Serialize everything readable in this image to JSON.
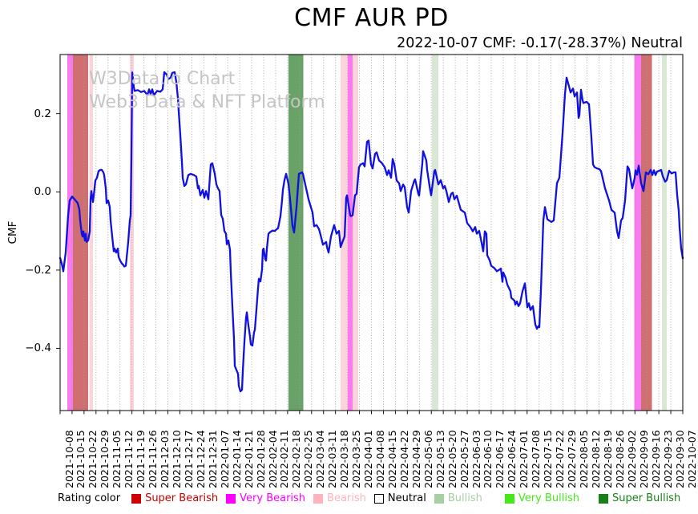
{
  "title": "CMF AUR PD",
  "subtitle": "2022-10-07 CMF: -0.17(-28.37%) Neutral",
  "watermark_line1": "W3Data.io Chart",
  "watermark_line2": "Web3 Data & NFT Platform",
  "legend": {
    "label": "Rating color",
    "items": [
      {
        "label": "Super Bearish",
        "color": "#cc0000",
        "bordered": false
      },
      {
        "label": "Very Bearish",
        "color": "#ff00ff",
        "bordered": false
      },
      {
        "label": "Bearish",
        "color": "#ffb3bd",
        "bordered": false
      },
      {
        "label": "Neutral",
        "color": "#ffffff",
        "bordered": true
      },
      {
        "label": "Bullish",
        "color": "#a8cfa4",
        "bordered": false
      },
      {
        "label": "Very Bullish",
        "color": "#46e81c",
        "bordered": false
      },
      {
        "label": "Super Bullish",
        "color": "#178017",
        "bordered": false
      }
    ]
  },
  "chart_data": {
    "type": "line",
    "title": "CMF AUR PD",
    "ylabel": "CMF",
    "series_name": "CMF",
    "line_color": "#1010e0",
    "grid": "vertical-dotted",
    "legend_position": "bottom",
    "ylim": [
      -0.559,
      0.351
    ],
    "x_range": 777,
    "yticks": [
      {
        "value": 0.2,
        "label": "0.2"
      },
      {
        "value": 0.0,
        "label": "0.0"
      },
      {
        "value": -0.2,
        "label": "−0.2"
      },
      {
        "value": -0.4,
        "label": "−0.4"
      }
    ],
    "x_tick_labels": [
      "2021-10-08",
      "2021-10-15",
      "2021-10-22",
      "2021-10-29",
      "2021-11-05",
      "2021-11-12",
      "2021-11-19",
      "2021-11-26",
      "2021-12-03",
      "2021-12-10",
      "2021-12-17",
      "2021-12-24",
      "2021-12-31",
      "2022-01-07",
      "2022-01-14",
      "2022-01-21",
      "2022-01-28",
      "2022-02-04",
      "2022-02-11",
      "2022-02-18",
      "2022-02-25",
      "2022-03-04",
      "2022-03-11",
      "2022-03-18",
      "2022-03-25",
      "2022-04-01",
      "2022-04-08",
      "2022-04-15",
      "2022-04-22",
      "2022-04-29",
      "2022-05-06",
      "2022-05-13",
      "2022-05-20",
      "2022-05-27",
      "2022-06-03",
      "2022-06-10",
      "2022-06-17",
      "2022-06-24",
      "2022-07-01",
      "2022-07-08",
      "2022-07-15",
      "2022-07-22",
      "2022-07-29",
      "2022-08-05",
      "2022-08-12",
      "2022-08-19",
      "2022-08-26",
      "2022-09-02",
      "2022-09-09",
      "2022-09-16",
      "2022-09-23",
      "2022-09-30",
      "2022-10-07"
    ],
    "band_colors": {
      "super_bearish": "#cf6f6f",
      "very_bearish": "#f97af0",
      "bearish": "#fbd3da",
      "bullish": "#d8e8d4",
      "super_bullish": "#68a268"
    },
    "bands": [
      {
        "from": 9,
        "to": 16,
        "rating": "very_bearish"
      },
      {
        "from": 16,
        "to": 35,
        "rating": "super_bearish"
      },
      {
        "from": 36.5,
        "to": 41,
        "rating": "bearish"
      },
      {
        "from": 87,
        "to": 92,
        "rating": "bearish"
      },
      {
        "from": 285,
        "to": 303.5,
        "rating": "super_bullish"
      },
      {
        "from": 350,
        "to": 359,
        "rating": "bearish"
      },
      {
        "from": 359,
        "to": 365,
        "rating": "very_bearish"
      },
      {
        "from": 365,
        "to": 372,
        "rating": "bearish"
      },
      {
        "from": 464,
        "to": 472,
        "rating": "bullish"
      },
      {
        "from": 716.5,
        "to": 725,
        "rating": "very_bearish"
      },
      {
        "from": 725,
        "to": 738.5,
        "rating": "super_bearish"
      },
      {
        "from": 751,
        "to": 757,
        "rating": "bullish"
      }
    ],
    "points": [
      [
        0,
        -0.169
      ],
      [
        2,
        -0.183
      ],
      [
        4,
        -0.203
      ],
      [
        7,
        -0.155
      ],
      [
        10,
        -0.06
      ],
      [
        12,
        -0.022
      ],
      [
        15,
        -0.012
      ],
      [
        18,
        -0.019
      ],
      [
        22,
        -0.029
      ],
      [
        24,
        -0.045
      ],
      [
        25,
        -0.073
      ],
      [
        27,
        -0.107
      ],
      [
        28,
        -0.114
      ],
      [
        29,
        -0.101
      ],
      [
        31,
        -0.124
      ],
      [
        32,
        -0.107
      ],
      [
        33,
        -0.128
      ],
      [
        35,
        -0.124
      ],
      [
        37,
        -0.101
      ],
      [
        38,
        -0.019
      ],
      [
        39,
        0.002
      ],
      [
        41,
        -0.026
      ],
      [
        42,
        -0.009
      ],
      [
        44,
        0.029
      ],
      [
        46,
        0.036
      ],
      [
        48,
        0.053
      ],
      [
        50,
        0.056
      ],
      [
        52,
        0.056
      ],
      [
        54,
        0.05
      ],
      [
        55,
        0.043
      ],
      [
        57,
        0.009
      ],
      [
        58,
        -0.029
      ],
      [
        60,
        -0.022
      ],
      [
        62,
        -0.039
      ],
      [
        63,
        -0.073
      ],
      [
        65,
        -0.114
      ],
      [
        67,
        -0.152
      ],
      [
        68,
        -0.145
      ],
      [
        70,
        -0.155
      ],
      [
        72,
        -0.145
      ],
      [
        73,
        -0.166
      ],
      [
        75,
        -0.176
      ],
      [
        77,
        -0.183
      ],
      [
        79,
        -0.187
      ],
      [
        80,
        -0.191
      ],
      [
        82,
        -0.189
      ],
      [
        83,
        -0.169
      ],
      [
        85,
        -0.128
      ],
      [
        87,
        -0.073
      ],
      [
        88,
        -0.06
      ],
      [
        89,
        0.09
      ],
      [
        90,
        0.305
      ],
      [
        92,
        0.268
      ],
      [
        93,
        0.258
      ],
      [
        97,
        0.26
      ],
      [
        101,
        0.255
      ],
      [
        105,
        0.258
      ],
      [
        109,
        0.247
      ],
      [
        111,
        0.262
      ],
      [
        113,
        0.25
      ],
      [
        115,
        0.262
      ],
      [
        117,
        0.247
      ],
      [
        121,
        0.258
      ],
      [
        125,
        0.256
      ],
      [
        128,
        0.262
      ],
      [
        130,
        0.306
      ],
      [
        133,
        0.3
      ],
      [
        135,
        0.288
      ],
      [
        138,
        0.292
      ],
      [
        140,
        0.304
      ],
      [
        143,
        0.306
      ],
      [
        145,
        0.281
      ],
      [
        147,
        0.24
      ],
      [
        148,
        0.206
      ],
      [
        150,
        0.145
      ],
      [
        152,
        0.077
      ],
      [
        153,
        0.036
      ],
      [
        155,
        0.015
      ],
      [
        157,
        0.019
      ],
      [
        160,
        0.043
      ],
      [
        163,
        0.046
      ],
      [
        167,
        0.043
      ],
      [
        170,
        0.039
      ],
      [
        172,
        0.009
      ],
      [
        173,
        0.015
      ],
      [
        175,
        -0.009
      ],
      [
        178,
        0.005
      ],
      [
        180,
        -0.015
      ],
      [
        182,
        0.002
      ],
      [
        185,
        -0.019
      ],
      [
        188,
        0.07
      ],
      [
        190,
        0.073
      ],
      [
        193,
        0.046
      ],
      [
        195,
        0.019
      ],
      [
        197,
        0.009
      ],
      [
        199,
        0.002
      ],
      [
        201,
        -0.059
      ],
      [
        203,
        -0.069
      ],
      [
        205,
        -0.1
      ],
      [
        207,
        -0.107
      ],
      [
        208,
        -0.134
      ],
      [
        210,
        -0.124
      ],
      [
        212,
        -0.148
      ],
      [
        213,
        -0.206
      ],
      [
        215,
        -0.294
      ],
      [
        217,
        -0.376
      ],
      [
        218,
        -0.445
      ],
      [
        220,
        -0.455
      ],
      [
        222,
        -0.465
      ],
      [
        223,
        -0.496
      ],
      [
        225,
        -0.51
      ],
      [
        227,
        -0.506
      ],
      [
        228,
        -0.458
      ],
      [
        230,
        -0.383
      ],
      [
        232,
        -0.322
      ],
      [
        233,
        -0.308
      ],
      [
        235,
        -0.342
      ],
      [
        237,
        -0.37
      ],
      [
        238,
        -0.39
      ],
      [
        240,
        -0.393
      ],
      [
        242,
        -0.359
      ],
      [
        243,
        -0.353
      ],
      [
        245,
        -0.301
      ],
      [
        247,
        -0.246
      ],
      [
        248,
        -0.222
      ],
      [
        250,
        -0.229
      ],
      [
        252,
        -0.198
      ],
      [
        253,
        -0.148
      ],
      [
        254,
        -0.145
      ],
      [
        256,
        -0.172
      ],
      [
        257,
        -0.176
      ],
      [
        258,
        -0.145
      ],
      [
        260,
        -0.107
      ],
      [
        262,
        -0.103
      ],
      [
        265,
        -0.099
      ],
      [
        268,
        -0.1
      ],
      [
        270,
        -0.096
      ],
      [
        272,
        -0.093
      ],
      [
        275,
        -0.062
      ],
      [
        277,
        -0.021
      ],
      [
        278,
        0.005
      ],
      [
        280,
        0.03
      ],
      [
        282,
        0.046
      ],
      [
        285,
        0.02
      ],
      [
        287,
        -0.019
      ],
      [
        290,
        -0.087
      ],
      [
        292,
        -0.104
      ],
      [
        295,
        -0.039
      ],
      [
        298,
        0.046
      ],
      [
        302,
        0.05
      ],
      [
        303,
        0.046
      ],
      [
        307,
        0.009
      ],
      [
        310,
        -0.019
      ],
      [
        315,
        -0.053
      ],
      [
        317,
        -0.088
      ],
      [
        320,
        -0.085
      ],
      [
        323,
        -0.095
      ],
      [
        325,
        -0.11
      ],
      [
        328,
        -0.135
      ],
      [
        332,
        -0.128
      ],
      [
        333,
        -0.141
      ],
      [
        335,
        -0.155
      ],
      [
        338,
        -0.114
      ],
      [
        342,
        -0.085
      ],
      [
        345,
        -0.107
      ],
      [
        348,
        -0.1
      ],
      [
        350,
        -0.141
      ],
      [
        352,
        -0.13
      ],
      [
        355,
        -0.114
      ],
      [
        357,
        -0.015
      ],
      [
        358,
        -0.009
      ],
      [
        362,
        -0.06
      ],
      [
        363,
        -0.062
      ],
      [
        365,
        -0.06
      ],
      [
        368,
        -0.009
      ],
      [
        370,
        -0.005
      ],
      [
        373,
        0.063
      ],
      [
        375,
        0.07
      ],
      [
        378,
        0.073
      ],
      [
        380,
        0.065
      ],
      [
        383,
        0.128
      ],
      [
        385,
        0.131
      ],
      [
        388,
        0.07
      ],
      [
        390,
        0.06
      ],
      [
        393,
        0.097
      ],
      [
        395,
        0.101
      ],
      [
        398,
        0.08
      ],
      [
        401,
        0.075
      ],
      [
        405,
        0.063
      ],
      [
        408,
        0.043
      ],
      [
        410,
        0.055
      ],
      [
        413,
        0.036
      ],
      [
        415,
        0.084
      ],
      [
        417,
        0.07
      ],
      [
        420,
        0.029
      ],
      [
        423,
        0.022
      ],
      [
        425,
        0.002
      ],
      [
        428,
        0.019
      ],
      [
        430,
        0.012
      ],
      [
        433,
        -0.039
      ],
      [
        435,
        -0.053
      ],
      [
        438,
        0.002
      ],
      [
        442,
        0.029
      ],
      [
        443,
        0.032
      ],
      [
        447,
        -0.005
      ],
      [
        448,
        -0.01
      ],
      [
        452,
        0.073
      ],
      [
        453,
        0.104
      ],
      [
        457,
        0.08
      ],
      [
        458,
        0.056
      ],
      [
        462,
        0.002
      ],
      [
        463,
        -0.009
      ],
      [
        467,
        0.053
      ],
      [
        468,
        0.056
      ],
      [
        472,
        0.019
      ],
      [
        475,
        0.03
      ],
      [
        478,
        0.009
      ],
      [
        480,
        0.015
      ],
      [
        482,
        0.002
      ],
      [
        485,
        -0.026
      ],
      [
        488,
        -0.005
      ],
      [
        490,
        -0.002
      ],
      [
        492,
        -0.019
      ],
      [
        495,
        -0.01
      ],
      [
        500,
        -0.046
      ],
      [
        505,
        -0.053
      ],
      [
        508,
        -0.08
      ],
      [
        512,
        -0.09
      ],
      [
        515,
        -0.101
      ],
      [
        518,
        -0.09
      ],
      [
        520,
        -0.107
      ],
      [
        523,
        -0.1
      ],
      [
        525,
        -0.12
      ],
      [
        528,
        -0.152
      ],
      [
        530,
        -0.101
      ],
      [
        532,
        -0.107
      ],
      [
        533,
        -0.162
      ],
      [
        536,
        -0.175
      ],
      [
        538,
        -0.189
      ],
      [
        542,
        -0.195
      ],
      [
        545,
        -0.203
      ],
      [
        548,
        -0.199
      ],
      [
        550,
        -0.196
      ],
      [
        552,
        -0.23
      ],
      [
        553,
        -0.206
      ],
      [
        556,
        -0.22
      ],
      [
        558,
        -0.237
      ],
      [
        562,
        -0.254
      ],
      [
        563,
        -0.271
      ],
      [
        567,
        -0.278
      ],
      [
        568,
        -0.288
      ],
      [
        570,
        -0.28
      ],
      [
        572,
        -0.292
      ],
      [
        574,
        -0.285
      ],
      [
        577,
        -0.254
      ],
      [
        580,
        -0.234
      ],
      [
        583,
        -0.295
      ],
      [
        585,
        -0.285
      ],
      [
        587,
        -0.302
      ],
      [
        590,
        -0.292
      ],
      [
        593,
        -0.339
      ],
      [
        595,
        -0.35
      ],
      [
        597,
        -0.343
      ],
      [
        598,
        -0.346
      ],
      [
        600,
        -0.251
      ],
      [
        603,
        -0.073
      ],
      [
        605,
        -0.039
      ],
      [
        608,
        -0.07
      ],
      [
        613,
        -0.077
      ],
      [
        616,
        -0.073
      ],
      [
        620,
        0.022
      ],
      [
        623,
        0.036
      ],
      [
        627,
        0.15
      ],
      [
        630,
        0.25
      ],
      [
        632,
        0.292
      ],
      [
        635,
        0.27
      ],
      [
        637,
        0.254
      ],
      [
        640,
        0.264
      ],
      [
        642,
        0.244
      ],
      [
        645,
        0.254
      ],
      [
        647,
        0.189
      ],
      [
        648,
        0.196
      ],
      [
        650,
        0.261
      ],
      [
        652,
        0.234
      ],
      [
        653,
        0.227
      ],
      [
        657,
        0.23
      ],
      [
        660,
        0.224
      ],
      [
        663,
        0.138
      ],
      [
        665,
        0.07
      ],
      [
        667,
        0.063
      ],
      [
        670,
        0.06
      ],
      [
        673,
        0.058
      ],
      [
        675,
        0.053
      ],
      [
        680,
        0.009
      ],
      [
        685,
        -0.022
      ],
      [
        688,
        -0.046
      ],
      [
        692,
        -0.053
      ],
      [
        695,
        -0.101
      ],
      [
        697,
        -0.118
      ],
      [
        700,
        -0.073
      ],
      [
        702,
        -0.067
      ],
      [
        705,
        -0.022
      ],
      [
        708,
        0.065
      ],
      [
        710,
        0.058
      ],
      [
        713,
        0.019
      ],
      [
        714,
        0.009
      ],
      [
        717,
        0.036
      ],
      [
        718,
        0.055
      ],
      [
        720,
        0.044
      ],
      [
        722,
        0.067
      ],
      [
        725,
        0.022
      ],
      [
        727,
        0.009
      ],
      [
        728,
        0.002
      ],
      [
        731,
        0.05
      ],
      [
        734,
        0.045
      ],
      [
        737,
        0.056
      ],
      [
        739,
        0.043
      ],
      [
        741,
        0.055
      ],
      [
        743,
        0.043
      ],
      [
        745,
        0.052
      ],
      [
        748,
        0.054
      ],
      [
        750,
        0.056
      ],
      [
        752,
        0.04
      ],
      [
        755,
        0.026
      ],
      [
        757,
        0.03
      ],
      [
        760,
        0.054
      ],
      [
        763,
        0.047
      ],
      [
        766,
        0.05
      ],
      [
        768,
        0.05
      ],
      [
        770,
        -0.008
      ],
      [
        772,
        -0.049
      ],
      [
        773,
        -0.09
      ],
      [
        775,
        -0.145
      ],
      [
        777,
        -0.17
      ]
    ]
  }
}
